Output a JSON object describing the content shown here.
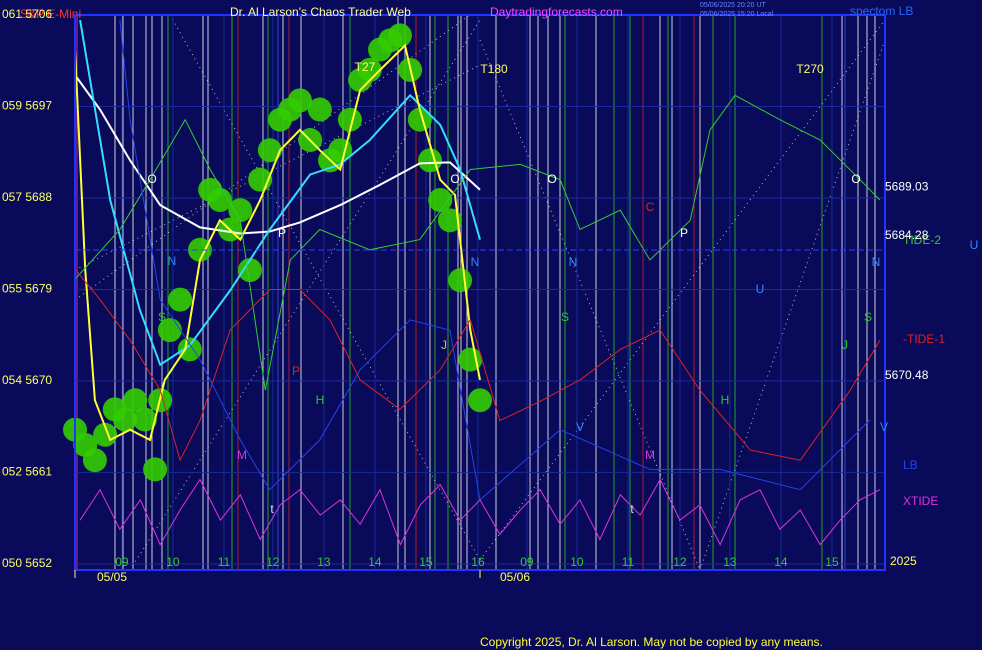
{
  "header": {
    "symbol": "S&P E-Mini",
    "title": "Dr. Al Larson's Chaos Trader Web",
    "site": "Daytradingforecasts.com",
    "time_ut": "05/06/2025 20:20 UT",
    "time_local": "05/06/2025 15:20 Local",
    "corner": "spectom LB"
  },
  "footer": {
    "copyright": "Copyright 2025, Dr. Al Larson. May not be copied by any means."
  },
  "chart_data": {
    "type": "line",
    "ylim": [
      5651.4,
      5706
    ],
    "xlim": [
      0,
      15.88
    ],
    "yticks": [
      {
        "value": 5706,
        "label": "061 5706"
      },
      {
        "value": 5697,
        "label": "059 5697"
      },
      {
        "value": 5688,
        "label": "057 5688"
      },
      {
        "value": 5679,
        "label": "055 5679"
      },
      {
        "value": 5670,
        "label": "054 5670"
      },
      {
        "value": 5661,
        "label": "052 5661"
      },
      {
        "value": 5652,
        "label": "050 5652"
      }
    ],
    "xticks": [
      {
        "value": 0.92,
        "label": "09"
      },
      {
        "value": 1.92,
        "label": "10"
      },
      {
        "value": 2.92,
        "label": "11"
      },
      {
        "value": 3.88,
        "label": "12"
      },
      {
        "value": 4.88,
        "label": "13"
      },
      {
        "value": 5.88,
        "label": "14"
      },
      {
        "value": 6.88,
        "label": "15"
      },
      {
        "value": 7.9,
        "label": "16"
      },
      {
        "value": 8.86,
        "label": "09"
      },
      {
        "value": 9.84,
        "label": "10"
      },
      {
        "value": 10.84,
        "label": "11"
      },
      {
        "value": 11.86,
        "label": "12"
      },
      {
        "value": 12.84,
        "label": "13"
      },
      {
        "value": 13.84,
        "label": "14"
      },
      {
        "value": 14.84,
        "label": "15"
      }
    ],
    "date_labels": [
      "05/05",
      "05/06",
      "2025"
    ],
    "grid": true,
    "price_labels": [
      5689.03,
      5684.28,
      5670.48
    ],
    "annotations": [
      "O",
      "N",
      "P",
      "S",
      "M",
      "H",
      "J",
      "t",
      "V",
      "U",
      "C",
      "O",
      "N",
      "S",
      "M",
      "P",
      "H",
      "J",
      "t",
      "O",
      "N",
      "S",
      "V",
      "U",
      "T180",
      "T270",
      "T27",
      "N",
      "O",
      "P"
    ],
    "series": [
      {
        "color": "#33cc00",
        "marker": "circle",
        "x": [
          0,
          0.2,
          0.39,
          0.59,
          0.78,
          0.98,
          1.18,
          1.37,
          1.57,
          1.67,
          1.86,
          2.06,
          2.25,
          2.45,
          2.65,
          2.84,
          3.04,
          3.24,
          3.43,
          3.63,
          3.82,
          4.02,
          4.22,
          4.41,
          4.61,
          4.8,
          5,
          5.2,
          5.39,
          5.59,
          5.78,
          5.98,
          6.18,
          6.37,
          6.57,
          6.76,
          6.96,
          7.16,
          7.35,
          7.55,
          7.75,
          7.94
        ],
        "values": [
          5665.2,
          5663.7,
          5662.2,
          5664.7,
          5667.2,
          5666.2,
          5668.1,
          5666.2,
          5661.3,
          5668.1,
          5675,
          5678,
          5673.1,
          5682.9,
          5688.8,
          5687.8,
          5684.9,
          5686.8,
          5680.9,
          5689.8,
          5692.7,
          5695.7,
          5696.7,
          5697.6,
          5693.7,
          5696.7,
          5691.7,
          5692.7,
          5695.7,
          5699.6,
          5700.6,
          5702.6,
          5703.5,
          5704,
          5700.6,
          5695.7,
          5691.7,
          5687.8,
          5685.8,
          5679.9,
          5672.1,
          5668.1
        ]
      },
      {
        "color": "#ffffff",
        "x": [
          0,
          0.49,
          1.08,
          1.67,
          2.45,
          3.24,
          3.82,
          4.41,
          5.2,
          5.98,
          6.76,
          7.35,
          7.94
        ],
        "values": [
          5700.1,
          5696.7,
          5691.7,
          5687.3,
          5685.1,
          5684.5,
          5684.7,
          5685.6,
          5687.3,
          5689.3,
          5691.4,
          5691.5,
          5688.8
        ]
      },
      {
        "color": "#33ddff",
        "x": [
          0.1,
          0.69,
          1.27,
          1.67,
          2.25,
          3.04,
          3.82,
          4.61,
          5.2,
          5.78,
          6.57,
          7.16,
          7.55,
          7.94
        ],
        "values": [
          5705.5,
          5687.8,
          5677,
          5671.6,
          5673.5,
          5678.9,
          5684.9,
          5690.3,
          5691.3,
          5693.7,
          5698.1,
          5695.2,
          5690.8,
          5683.9
        ]
      },
      {
        "color": "#ffff33",
        "x": [
          0,
          0.2,
          0.39,
          0.69,
          1.08,
          1.47,
          1.76,
          2.16,
          2.45,
          2.84,
          3.24,
          3.63,
          4.02,
          4.41,
          4.8,
          5.2,
          5.59,
          5.98,
          6.47,
          6.76,
          7.16,
          7.45,
          7.75,
          7.94
        ],
        "values": [
          5702.6,
          5681,
          5668.1,
          5664.2,
          5665.2,
          5664.2,
          5670.1,
          5673.1,
          5681.9,
          5685.8,
          5683.9,
          5687.8,
          5692.7,
          5694.7,
          5692.7,
          5690.8,
          5698.6,
          5700.6,
          5703,
          5696.7,
          5689.8,
          5688.3,
          5675,
          5670.1
        ]
      },
      {
        "name": "TIDE-2",
        "color": "#33cc33",
        "x": [
          0,
          0.88,
          1.47,
          2.16,
          2.65,
          3.24,
          3.73,
          4.22,
          4.8,
          5.78,
          6.76,
          7.75,
          8.73,
          9.51,
          9.9,
          10.69,
          11.27,
          12.06,
          12.45,
          12.94,
          13.82,
          14.61,
          15.39,
          15.78
        ],
        "values": [
          5680,
          5684.9,
          5689.8,
          5695.7,
          5690.8,
          5685.8,
          5669.1,
          5681.9,
          5684.9,
          5682.9,
          5683.9,
          5690.8,
          5691.3,
          5689.8,
          5684.9,
          5686.8,
          5681.9,
          5685.8,
          5694.7,
          5698.1,
          5695.7,
          5693.7,
          5689.8,
          5687.8
        ]
      },
      {
        "name": "-TIDE-1",
        "color": "#dd2222",
        "x": [
          0,
          0.49,
          1.08,
          1.67,
          2.06,
          2.45,
          3.04,
          3.82,
          4.41,
          5,
          5.59,
          6.37,
          7.16,
          7.75,
          8.33,
          9.12,
          9.9,
          10.69,
          11.47,
          12.25,
          13.24,
          14.22,
          15.2,
          15.78
        ],
        "values": [
          5681,
          5678,
          5674,
          5669.1,
          5662.2,
          5666.1,
          5675,
          5679,
          5679,
          5676,
          5670.1,
          5667.2,
          5671.1,
          5676,
          5666.1,
          5668,
          5670.1,
          5673.1,
          5675,
          5669.1,
          5663.2,
          5662.2,
          5669.1,
          5674
        ]
      },
      {
        "name": "LB",
        "color": "#2244ee",
        "x": [
          0.88,
          1.08,
          1.67,
          2.45,
          3.24,
          3.82,
          4.8,
          5.59,
          6.57,
          7.35,
          7.94,
          9.51,
          11.27,
          12.65,
          14.22,
          15.59
        ],
        "values": [
          5705.5,
          5695.7,
          5678,
          5672.1,
          5664.2,
          5659.3,
          5664.2,
          5671.1,
          5676,
          5675,
          5658.3,
          5665.2,
          5661.3,
          5661.3,
          5659.3,
          5666.2
        ]
      },
      {
        "name": "XTIDE",
        "color": "#dd33dd",
        "x": [
          0.1,
          0.49,
          0.88,
          1.28,
          1.67,
          2.06,
          2.45,
          2.85,
          3.24,
          3.63,
          4.02,
          4.41,
          4.81,
          5.2,
          5.59,
          5.98,
          6.38,
          6.77,
          7.16,
          7.55,
          7.94,
          8.33,
          8.73,
          9.12,
          9.51,
          9.9,
          10.29,
          10.69,
          11.08,
          11.47,
          11.86,
          12.25,
          12.65,
          13.04,
          13.43,
          13.82,
          14.22,
          14.61,
          15.0,
          15.39,
          15.78
        ],
        "values": [
          5656.3,
          5659.3,
          5655.4,
          5658.3,
          5653.9,
          5657.3,
          5660.3,
          5656.3,
          5658.8,
          5654.4,
          5657.8,
          5659.3,
          5656.8,
          5658.3,
          5655.9,
          5659.3,
          5653.9,
          5657.8,
          5659.8,
          5656.3,
          5658.3,
          5654.9,
          5657.3,
          5659.3,
          5655.9,
          5658.3,
          5654.4,
          5658.8,
          5656.8,
          5660.3,
          5656.3,
          5657.8,
          5653.9,
          5658.3,
          5659.3,
          5655.4,
          5657.3,
          5653.9,
          5656.3,
          5658.3,
          5659.3
        ]
      }
    ]
  }
}
